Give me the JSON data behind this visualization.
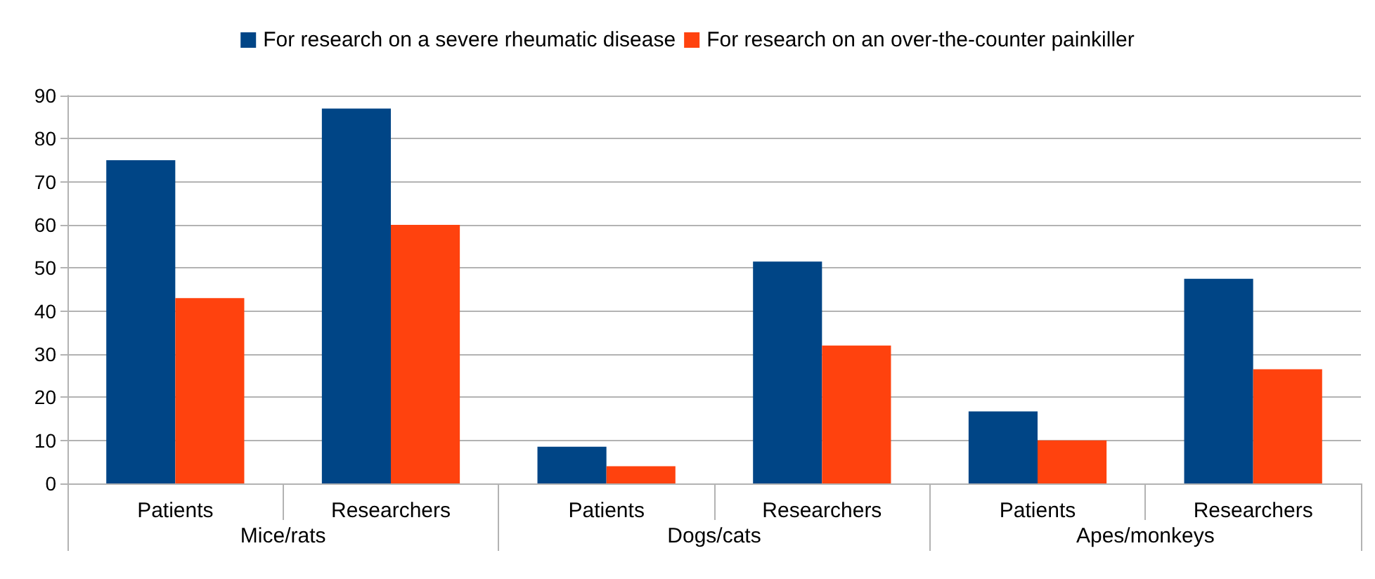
{
  "chart_data": {
    "type": "bar",
    "categories": [
      "Patients",
      "Researchers",
      "Patients",
      "Researchers",
      "Patients",
      "Researchers"
    ],
    "annotations": [
      "Mice/rats",
      "Dogs/cats",
      "Apes/monkeys"
    ],
    "series": [
      {
        "name": "For research on a severe rheumatic disease",
        "color": "#004586",
        "values": [
          75,
          87,
          8.5,
          51.5,
          16.7,
          47.5
        ]
      },
      {
        "name": "For research on an over-the-counter painkiller",
        "color": "#ff420e",
        "values": [
          43,
          60,
          4,
          32,
          10,
          26.5
        ]
      }
    ],
    "ylim": [
      0,
      90
    ],
    "yticks": [
      0,
      10,
      20,
      30,
      40,
      50,
      60,
      70,
      80,
      90
    ],
    "grid": "y",
    "legend": "top"
  }
}
